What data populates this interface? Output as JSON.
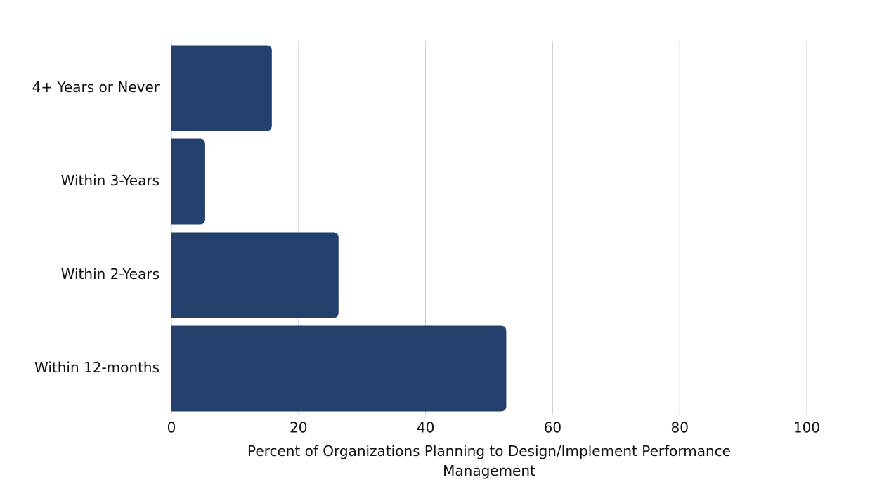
{
  "chart_data": {
    "type": "barh",
    "categories": [
      "4+ Years or Never",
      "Within 3-Years",
      "Within 2-Years",
      "Within 12-months"
    ],
    "values": [
      15.8,
      5.3,
      26.3,
      52.7
    ],
    "color": "#22406b",
    "xlabel": "Percent of Organizations Planning to Design/Implement Performance Management",
    "xlim": [
      0,
      100
    ],
    "xticks": [
      0,
      20,
      40,
      60,
      80,
      100
    ],
    "grid": true
  }
}
